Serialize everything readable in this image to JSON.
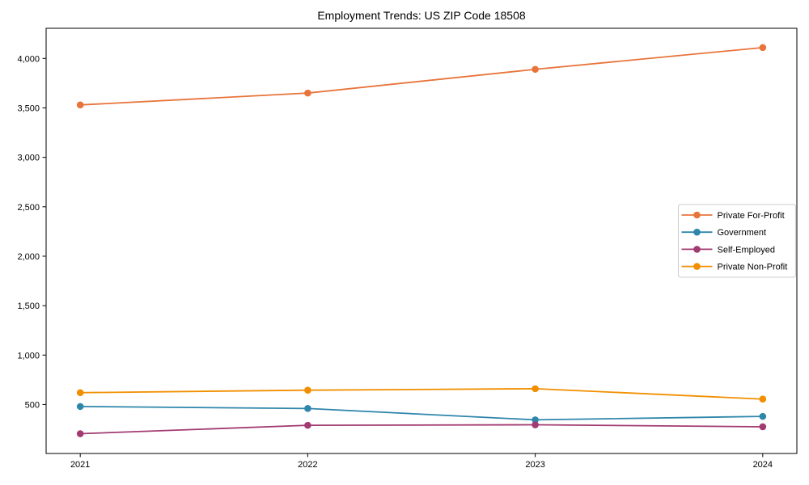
{
  "title": "Employment Trends: US ZIP Code 18508",
  "chart_data": {
    "type": "line",
    "title": "Employment Trends: US ZIP Code 18508",
    "categories": [
      2021,
      2022,
      2023,
      2024
    ],
    "series": [
      {
        "name": "Private For-Profit",
        "color": "#E8743B",
        "values": [
          3530,
          3650,
          3890,
          4110
        ]
      },
      {
        "name": "Government",
        "color": "#2E86AB",
        "values": [
          480,
          460,
          345,
          380
        ]
      },
      {
        "name": "Self-Employed",
        "color": "#A23B72",
        "values": [
          205,
          290,
          295,
          275
        ]
      },
      {
        "name": "Private Non-Profit",
        "color": "#F18F01",
        "values": [
          620,
          645,
          660,
          555
        ]
      }
    ],
    "xlabel": "",
    "ylabel": "",
    "xlim": [
      2020.85,
      2024.15
    ],
    "ylim": [
      5,
      4305
    ],
    "xticks": [
      2021,
      2022,
      2023,
      2024
    ],
    "xtick_labels": [
      "2021",
      "2022",
      "2023",
      "2024"
    ],
    "yticks": [
      500,
      1000,
      1500,
      2000,
      2500,
      3000,
      3500,
      4000
    ],
    "ytick_labels": [
      "500",
      "1,000",
      "1,500",
      "2,000",
      "2,500",
      "3,000",
      "3,500",
      "4,000"
    ],
    "grid": false,
    "legend_position": "center right",
    "spine_color": "#000000",
    "tick_label_color": "#000000",
    "legend_border_color": "#cccccc",
    "background_color": "#ffffff"
  }
}
